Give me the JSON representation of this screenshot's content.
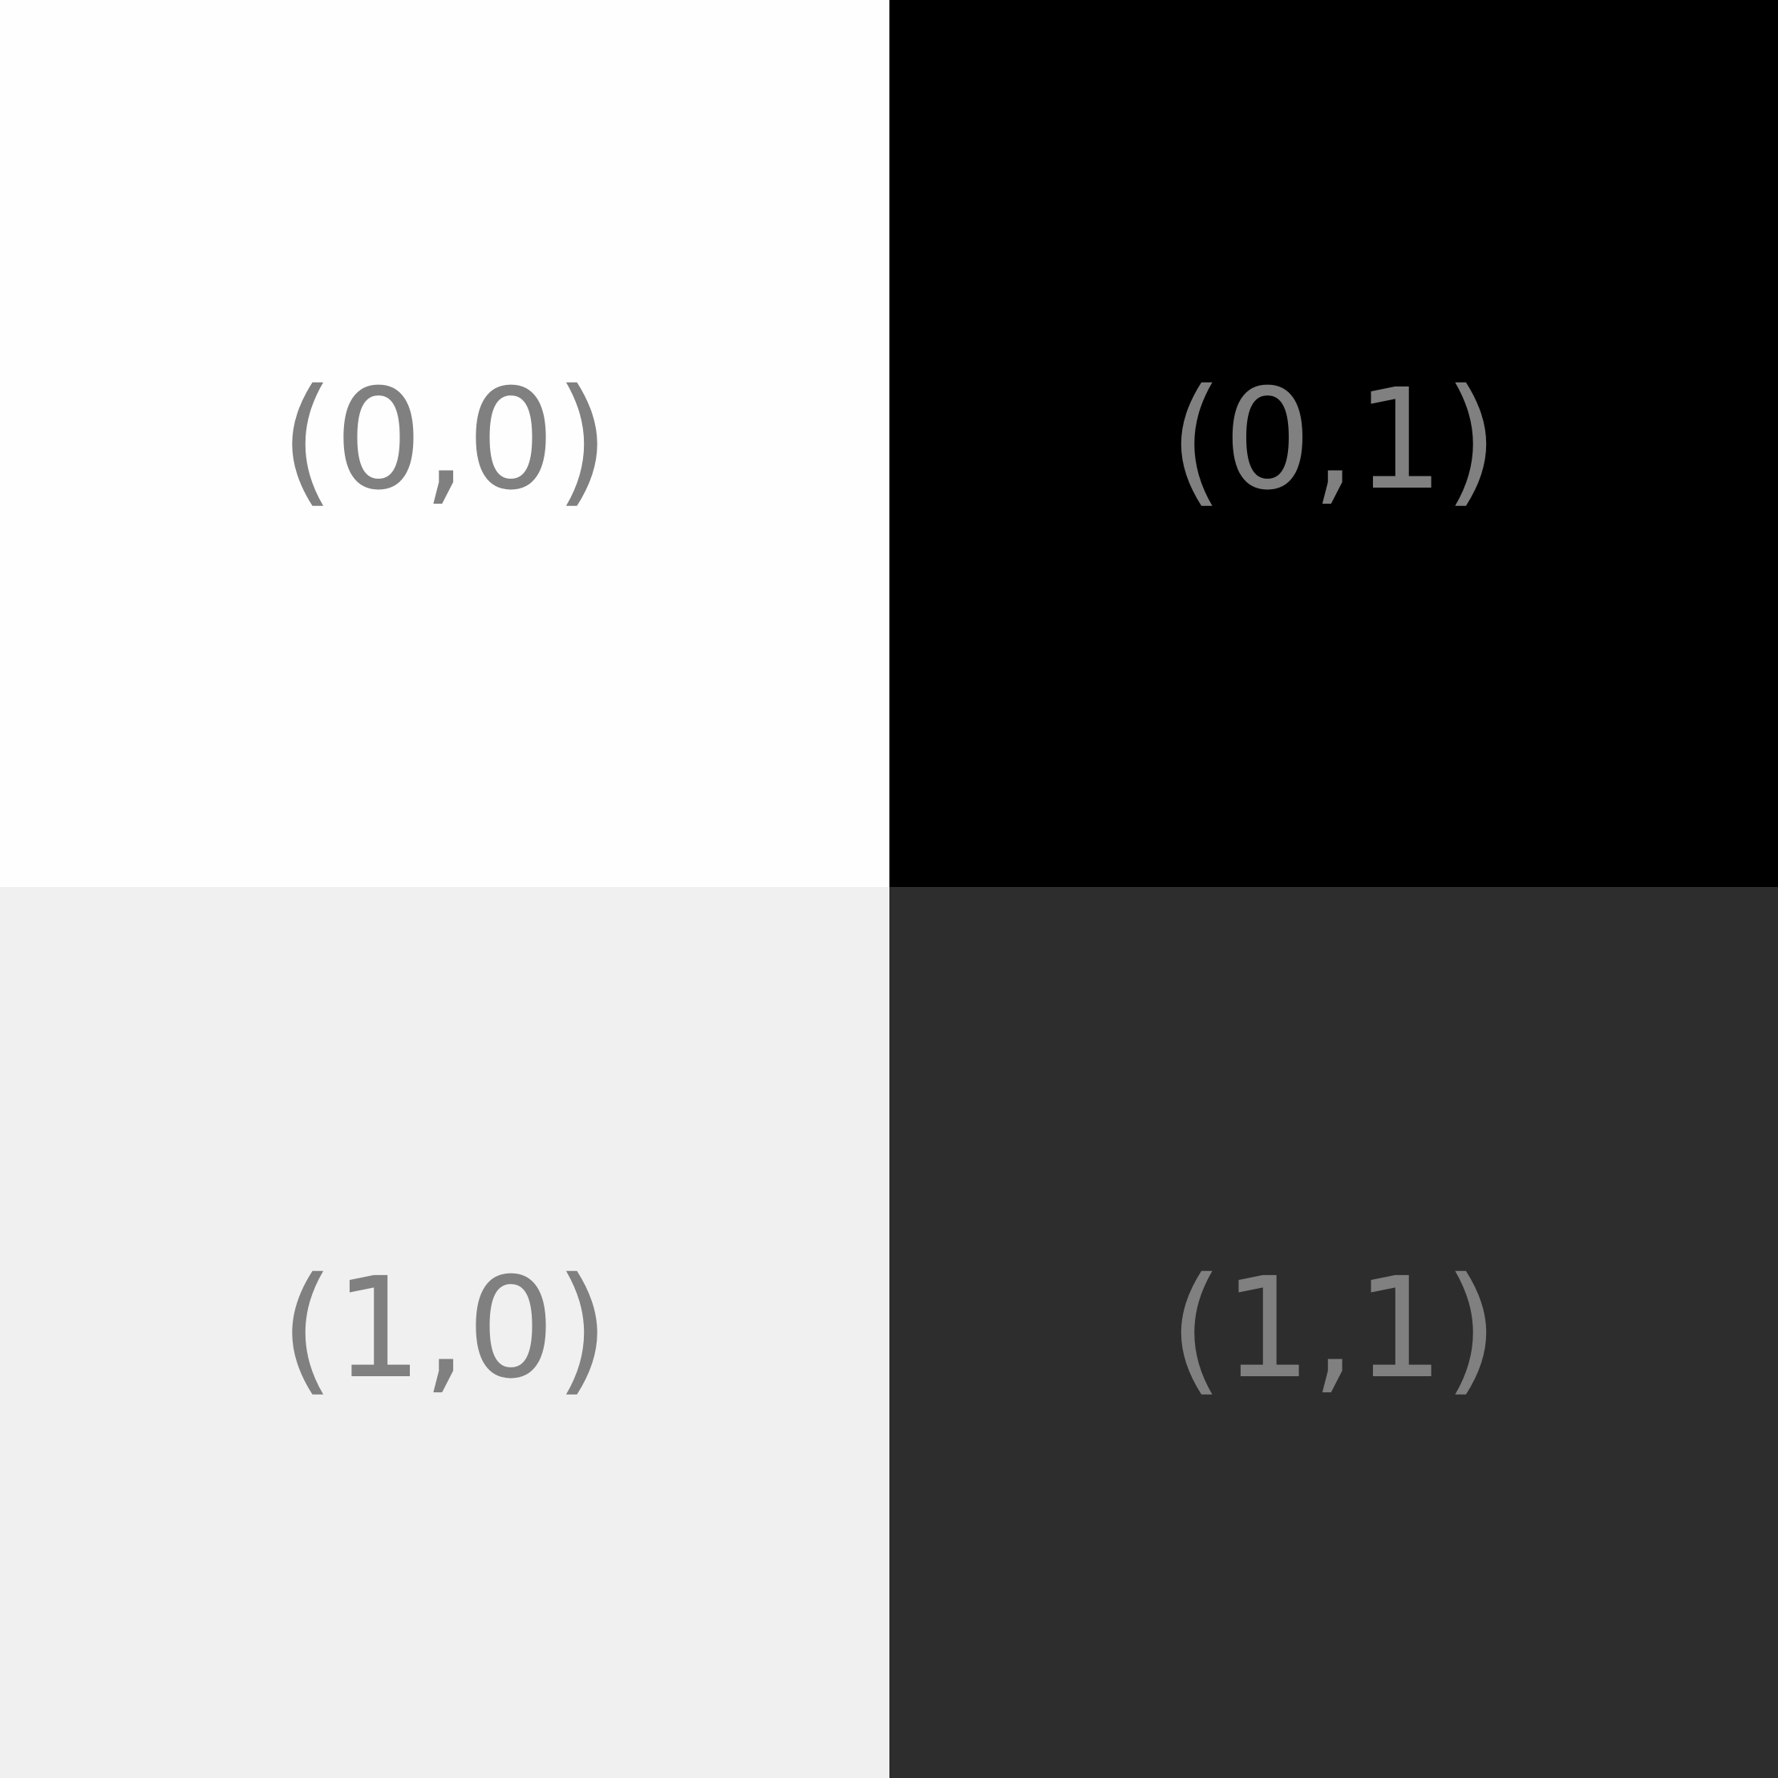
{
  "cells": [
    {
      "label": "(0,0)",
      "background": "#fefefe"
    },
    {
      "label": "(0,1)",
      "background": "#000000"
    },
    {
      "label": "(1,0)",
      "background": "#f0f0f0"
    },
    {
      "label": "(1,1)",
      "background": "#2d2d2d"
    }
  ],
  "text_color": "#808080"
}
